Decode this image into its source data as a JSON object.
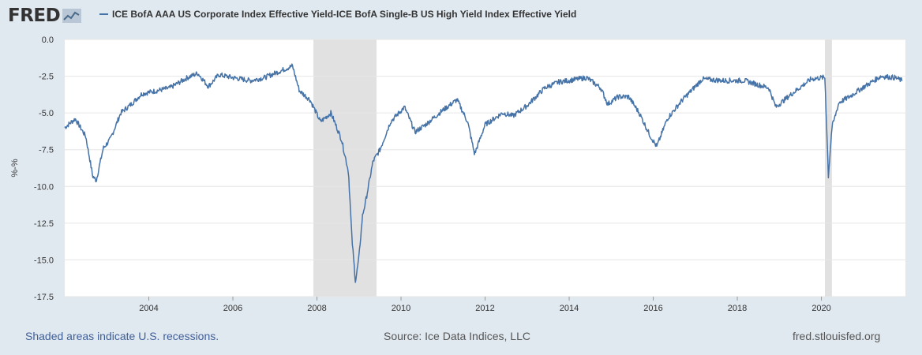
{
  "header": {
    "logo_text": "FRED",
    "legend_label": "ICE BofA AAA US Corporate Index Effective Yield-ICE BofA Single-B US High Yield Index Effective Yield"
  },
  "footer": {
    "recession_note": "Shaded areas indicate U.S. recessions.",
    "source": "Source: Ice Data Indices, LLC",
    "site": "fred.stlouisfed.org"
  },
  "colors": {
    "background": "#e1e9f0",
    "plot_background": "#ffffff",
    "series": "#4572a7",
    "recession": "#e1e1e1",
    "grid": "#e6e6e6"
  },
  "chart_data": {
    "type": "line",
    "title": "",
    "xlabel": "",
    "ylabel": "%-%",
    "series": [
      {
        "name": "ICE BofA AAA US Corporate Index Effective Yield-ICE BofA Single-B US High Yield Index Effective Yield",
        "x": [
          "2002-01",
          "2002-04",
          "2002-07",
          "2002-09",
          "2002-10",
          "2002-12",
          "2003-02",
          "2003-05",
          "2003-08",
          "2003-11",
          "2004-03",
          "2004-07",
          "2004-12",
          "2005-03",
          "2005-06",
          "2005-09",
          "2006-01",
          "2006-06",
          "2006-10",
          "2007-02",
          "2007-06",
          "2007-08",
          "2007-11",
          "2008-02",
          "2008-05",
          "2008-08",
          "2008-10",
          "2008-11",
          "2008-12",
          "2009-01",
          "2009-02",
          "2009-03",
          "2009-05",
          "2009-07",
          "2009-10",
          "2010-02",
          "2010-05",
          "2010-08",
          "2011-01",
          "2011-05",
          "2011-08",
          "2011-10",
          "2012-01",
          "2012-06",
          "2012-09",
          "2013-01",
          "2013-06",
          "2013-10",
          "2014-06",
          "2014-10",
          "2014-12",
          "2015-03",
          "2015-06",
          "2015-09",
          "2015-12",
          "2016-02",
          "2016-05",
          "2016-09",
          "2017-03",
          "2017-09",
          "2018-03",
          "2018-10",
          "2018-12",
          "2019-04",
          "2019-10",
          "2020-01",
          "2020-02",
          "2020-03",
          "2020-04",
          "2020-06",
          "2020-09",
          "2020-12",
          "2021-06",
          "2021-10",
          "2021-12"
        ],
        "values": [
          -6.0,
          -5.4,
          -6.6,
          -9.3,
          -9.6,
          -7.4,
          -6.8,
          -5.0,
          -4.4,
          -3.7,
          -3.5,
          -3.3,
          -2.6,
          -2.3,
          -3.2,
          -2.4,
          -2.6,
          -2.8,
          -2.6,
          -2.2,
          -1.8,
          -3.5,
          -4.1,
          -5.6,
          -5.0,
          -6.8,
          -9.0,
          -13.6,
          -16.5,
          -14.8,
          -12.0,
          -10.9,
          -8.3,
          -7.5,
          -5.6,
          -4.6,
          -6.3,
          -5.8,
          -4.8,
          -4.1,
          -5.6,
          -7.8,
          -5.8,
          -5.0,
          -5.2,
          -4.5,
          -3.3,
          -2.9,
          -2.6,
          -3.3,
          -4.4,
          -3.9,
          -3.9,
          -5.0,
          -6.5,
          -7.3,
          -5.4,
          -4.2,
          -2.7,
          -2.8,
          -2.8,
          -3.3,
          -4.6,
          -3.8,
          -2.7,
          -2.6,
          -2.6,
          -9.3,
          -6.0,
          -4.3,
          -3.9,
          -3.4,
          -2.5,
          -2.6,
          -2.8
        ]
      }
    ],
    "ylim": [
      -17.5,
      0
    ],
    "yticks": [
      0.0,
      -2.5,
      -5.0,
      -7.5,
      -10.0,
      -12.5,
      -15.0,
      -17.5
    ],
    "ytick_labels": [
      "0.0",
      "-2.5",
      "-5.0",
      "-7.5",
      "-10.0",
      "-12.5",
      "-15.0",
      "-17.5"
    ],
    "xlim": [
      "2002-01-01",
      "2021-12-31"
    ],
    "xticks": [
      "2004",
      "2006",
      "2008",
      "2010",
      "2012",
      "2014",
      "2016",
      "2018",
      "2020"
    ],
    "recessions": [
      [
        "2007-12",
        "2009-06"
      ],
      [
        "2020-02",
        "2020-04"
      ]
    ],
    "grid": true,
    "legend": "top"
  }
}
